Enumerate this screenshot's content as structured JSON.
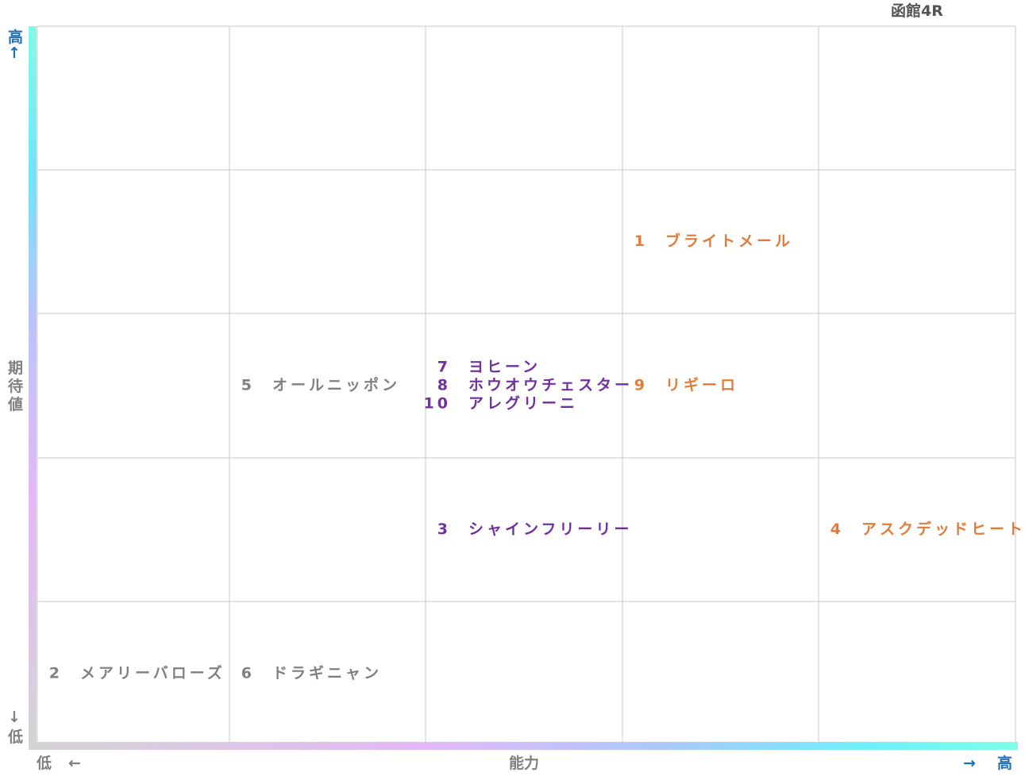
{
  "title": "函館4R",
  "y_axis": {
    "high": "高",
    "up_arrow": "↑",
    "label": "期待値",
    "down_arrow": "↓",
    "low": "低"
  },
  "x_axis": {
    "low": "低",
    "left_arrow": "←",
    "label": "能力",
    "right_arrow": "→",
    "high": "高"
  },
  "grid": {
    "rows": [
      [
        [],
        [],
        [],
        [],
        []
      ],
      [
        [],
        [],
        [],
        [
          {
            "number": 1,
            "name": "ブライトメール",
            "color": "#e07b39"
          }
        ],
        []
      ],
      [
        [],
        [
          {
            "number": 5,
            "name": "オールニッポン",
            "color": "#808080"
          }
        ],
        [
          {
            "number": 7,
            "name": "ヨヒーン",
            "color": "#7030a0"
          },
          {
            "number": 8,
            "name": "ホウオウチェスター",
            "color": "#7030a0"
          },
          {
            "number": 10,
            "name": "アレグリーニ",
            "color": "#7030a0"
          }
        ],
        [
          {
            "number": 9,
            "name": "リギーロ",
            "color": "#e07b39"
          }
        ],
        []
      ],
      [
        [],
        [],
        [
          {
            "number": 3,
            "name": "シャインフリーリー",
            "color": "#7030a0"
          }
        ],
        [],
        [
          {
            "number": 4,
            "name": "アスクデッドヒート",
            "color": "#e07b39"
          }
        ]
      ],
      [
        [
          {
            "number": 2,
            "name": "メアリーバローズ",
            "color": "#808080"
          }
        ],
        [
          {
            "number": 6,
            "name": "ドラギニャン",
            "color": "#808080"
          }
        ],
        [],
        [],
        []
      ]
    ]
  }
}
